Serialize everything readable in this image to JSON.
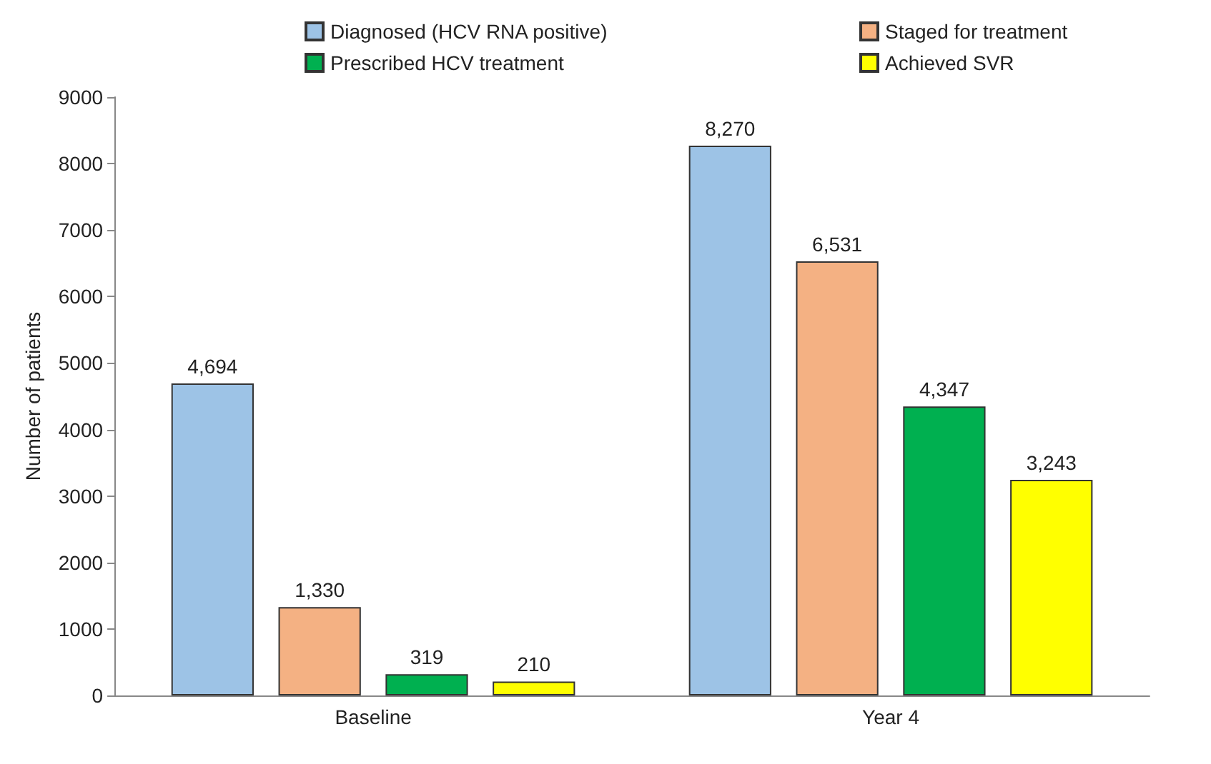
{
  "chart_data": {
    "type": "bar",
    "ylabel": "Number of patients",
    "categories": [
      "Baseline",
      "Year 4"
    ],
    "series": [
      {
        "name": "Diagnosed (HCV RNA positive)",
        "color": "#9dc3e6",
        "values": [
          4694,
          8270
        ],
        "value_labels": [
          "4,694",
          "8,270"
        ]
      },
      {
        "name": "Staged for treatment",
        "color": "#f4b183",
        "values": [
          1330,
          6531
        ],
        "value_labels": [
          "1,330",
          "6,531"
        ]
      },
      {
        "name": "Prescribed HCV treatment",
        "color": "#00b050",
        "values": [
          319,
          4347
        ],
        "value_labels": [
          "319",
          "4,347"
        ]
      },
      {
        "name": "Achieved SVR",
        "color": "#ffff00",
        "values": [
          210,
          3243
        ],
        "value_labels": [
          "210",
          "3,243"
        ]
      }
    ],
    "ylim": [
      0,
      9000
    ],
    "yticks": [
      0,
      1000,
      2000,
      3000,
      4000,
      5000,
      6000,
      7000,
      8000,
      9000
    ],
    "grid": false,
    "legend": "top"
  }
}
